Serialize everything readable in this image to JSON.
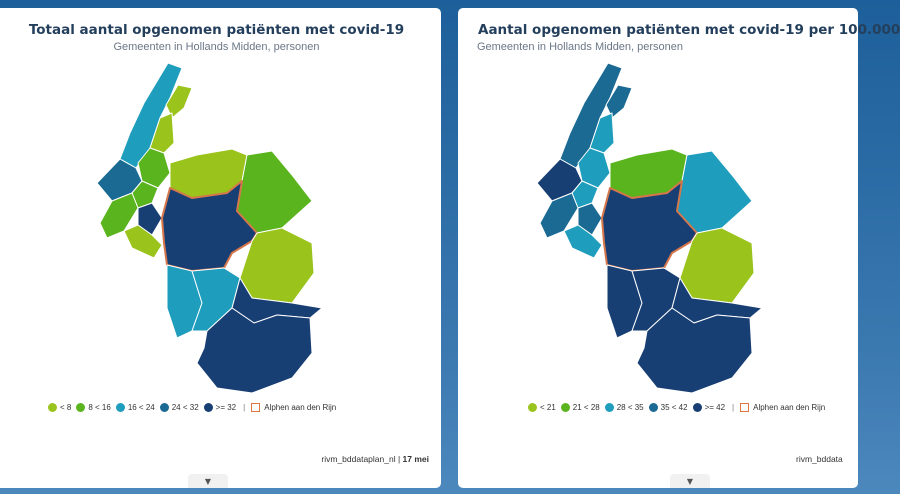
{
  "colors": {
    "c1": "#9ac31c",
    "c2": "#5ab41d",
    "c3": "#1e9dbd",
    "c4": "#1b6a94",
    "c5": "#183f74",
    "highlight": "#d5774b"
  },
  "panels": [
    {
      "title": "Totaal aantal opgenomen patiënten met covid-19",
      "subtitle": "Gemeenten in Hollands Midden, personen",
      "legend": [
        {
          "label": "< 8",
          "color": "#9ac31c"
        },
        {
          "label": "8 < 16",
          "color": "#5ab41d"
        },
        {
          "label": "16 < 24",
          "color": "#1e9dbd"
        },
        {
          "label": "24 < 32",
          "color": "#1b6a94"
        },
        {
          "label": ">= 32",
          "color": "#183f74"
        }
      ],
      "highlight_label": "Alphen aan den Rijn",
      "source": "rivm_bddataplan_nl",
      "date": "17 mei"
    },
    {
      "title": "Aantal opgenomen patiënten met covid-19 per 100.000",
      "subtitle": "Gemeenten in Hollands Midden, personen",
      "legend": [
        {
          "label": "< 21",
          "color": "#9ac31c"
        },
        {
          "label": "21 < 28",
          "color": "#5ab41d"
        },
        {
          "label": "28 < 35",
          "color": "#1e9dbd"
        },
        {
          "label": "35 < 42",
          "color": "#1b6a94"
        },
        {
          "label": ">= 42",
          "color": "#183f74"
        }
      ],
      "highlight_label": "Alphen aan den Rijn",
      "source": "rivm_bddata"
    }
  ]
}
